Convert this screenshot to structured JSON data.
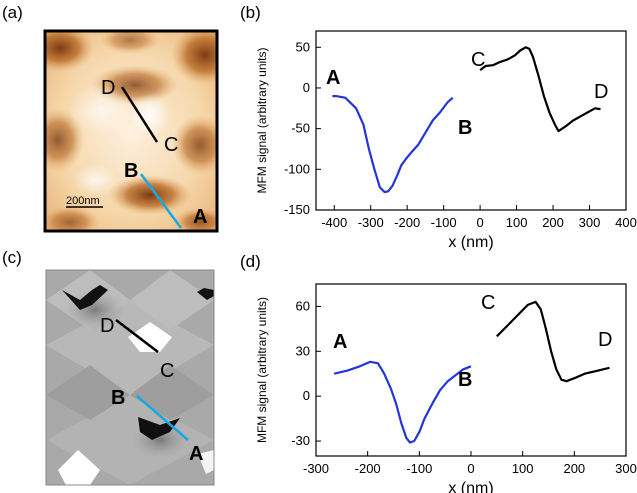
{
  "panels": {
    "a": "(a)",
    "b": "(b)",
    "c": "(c)",
    "d": "(d)"
  },
  "image_a": {
    "scale_label": "200nm",
    "points": [
      "D",
      "C",
      "B",
      "A"
    ]
  },
  "image_c": {
    "points": [
      "D",
      "C",
      "B",
      "A"
    ]
  },
  "colors": {
    "blue": "#2236d8",
    "black": "#000000",
    "cyan": "#1aa8e0",
    "navy": "#1d2f7a"
  },
  "chart_data": [
    {
      "id": "b",
      "type": "line",
      "xlabel": "x (nm)",
      "ylabel": "MFM signal (arbitrary units)",
      "xlim": [
        -450,
        400
      ],
      "ylim": [
        -150,
        70
      ],
      "xticks": [
        -400,
        -300,
        -200,
        -100,
        0,
        100,
        200,
        300,
        400
      ],
      "yticks": [
        50,
        0,
        -50,
        -100,
        -150
      ],
      "series": [
        {
          "name": "A-B",
          "color": "#2236d8",
          "start_label": "A",
          "end_label": "B",
          "x": [
            -405,
            -395,
            -370,
            -340,
            -320,
            -305,
            -290,
            -275,
            -262,
            -252,
            -240,
            -228,
            -216,
            -205,
            -190,
            -170,
            -150,
            -130,
            -110,
            -90,
            -75
          ],
          "y": [
            -10,
            -10,
            -12,
            -25,
            -45,
            -75,
            -100,
            -122,
            -128,
            -127,
            -120,
            -108,
            -95,
            -88,
            -80,
            -70,
            -55,
            -40,
            -30,
            -18,
            -12
          ]
        },
        {
          "name": "C-D",
          "color": "#000000",
          "start_label": "C",
          "end_label": "D",
          "x": [
            0,
            15,
            35,
            55,
            75,
            95,
            110,
            125,
            135,
            145,
            160,
            175,
            190,
            205,
            215,
            235,
            255,
            275,
            295,
            315,
            330
          ],
          "y": [
            22,
            27,
            28,
            32,
            35,
            40,
            46,
            50,
            48,
            38,
            15,
            -10,
            -30,
            -45,
            -53,
            -47,
            -40,
            -35,
            -30,
            -25,
            -26
          ]
        }
      ]
    },
    {
      "id": "d",
      "type": "line",
      "xlabel": "x (nm)",
      "ylabel": "MFM signal (arbitrary units)",
      "xlim": [
        -300,
        300
      ],
      "ylim": [
        -40,
        75
      ],
      "xticks": [
        -300,
        -200,
        -100,
        0,
        100,
        200,
        300
      ],
      "yticks": [
        60,
        30,
        0,
        -30
      ],
      "series": [
        {
          "name": "A-B",
          "color": "#2236d8",
          "start_label": "A",
          "end_label": "B",
          "x": [
            -265,
            -240,
            -215,
            -195,
            -180,
            -168,
            -155,
            -145,
            -135,
            -125,
            -118,
            -110,
            -100,
            -90,
            -75,
            -60,
            -45,
            -30,
            -15,
            0
          ],
          "y": [
            15,
            17,
            20,
            23,
            22,
            15,
            5,
            -5,
            -18,
            -28,
            -31,
            -30,
            -24,
            -15,
            -5,
            4,
            10,
            14,
            18,
            20
          ]
        },
        {
          "name": "C-D",
          "color": "#000000",
          "start_label": "C",
          "end_label": "D",
          "x": [
            50,
            70,
            90,
            110,
            125,
            135,
            145,
            155,
            165,
            175,
            185,
            200,
            220,
            245,
            268
          ],
          "y": [
            40,
            47,
            54,
            61,
            63,
            58,
            45,
            30,
            18,
            11,
            10,
            12,
            15,
            17,
            19
          ]
        }
      ]
    }
  ]
}
